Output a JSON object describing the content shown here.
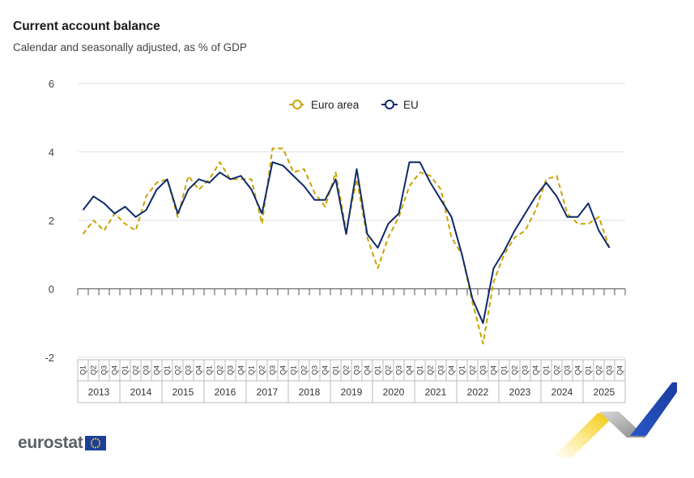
{
  "header": {
    "title": "Current account balance",
    "subtitle": "Calendar and seasonally adjusted, as % of GDP"
  },
  "branding": {
    "logo_text": "eurostat"
  },
  "colors": {
    "euro_area": "#c9a300",
    "eu": "#0e2a6b",
    "grid": "#dfe2ee",
    "axis": "#555555"
  },
  "chart_data": {
    "type": "line",
    "ylim": [
      -2,
      6
    ],
    "yticks": [
      -2,
      0,
      2,
      4,
      6
    ],
    "years": [
      "2013",
      "2014",
      "2015",
      "2016",
      "2017",
      "2018",
      "2019",
      "2020",
      "2021",
      "2022",
      "2023",
      "2024",
      "2025"
    ],
    "quarters": [
      "Q1",
      "Q2",
      "Q3",
      "Q4"
    ],
    "legend": {
      "position": "top-center",
      "entries": [
        "Euro area",
        "EU"
      ]
    },
    "series": [
      {
        "name": "Euro area",
        "style": "dashed",
        "values": [
          1.6,
          2.0,
          1.7,
          2.2,
          1.9,
          1.7,
          2.7,
          3.1,
          3.2,
          2.1,
          3.3,
          2.9,
          3.2,
          3.7,
          3.2,
          3.2,
          3.2,
          1.9,
          4.1,
          4.1,
          3.4,
          3.5,
          2.8,
          2.4,
          3.4,
          1.7,
          3.2,
          1.5,
          0.6,
          1.5,
          2.1,
          3.0,
          3.4,
          3.3,
          2.9,
          1.5,
          1.0,
          -0.4,
          -1.6,
          0.2,
          1.0,
          1.5,
          1.7,
          2.3,
          3.2,
          3.3,
          2.2,
          1.9,
          1.9,
          2.1,
          1.2
        ]
      },
      {
        "name": "EU",
        "style": "solid",
        "values": [
          2.3,
          2.7,
          2.5,
          2.2,
          2.4,
          2.1,
          2.3,
          2.9,
          3.2,
          2.2,
          2.9,
          3.2,
          3.1,
          3.4,
          3.2,
          3.3,
          2.9,
          2.2,
          3.7,
          3.6,
          3.3,
          3.0,
          2.6,
          2.6,
          3.2,
          1.6,
          3.5,
          1.6,
          1.2,
          1.9,
          2.2,
          3.7,
          3.7,
          3.1,
          2.6,
          2.1,
          1.0,
          -0.3,
          -1.0,
          0.6,
          1.1,
          1.7,
          2.2,
          2.7,
          3.1,
          2.7,
          2.1,
          2.1,
          2.5,
          1.7,
          1.2
        ]
      }
    ]
  }
}
